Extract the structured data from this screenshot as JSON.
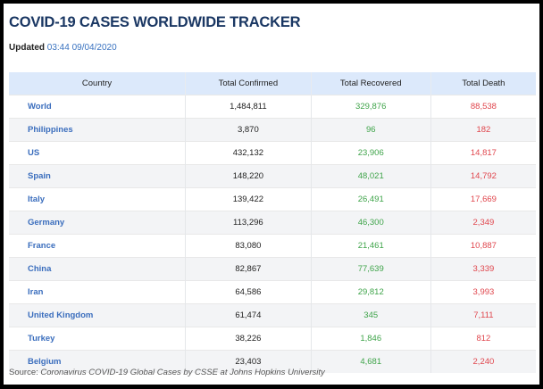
{
  "title": "COVID-19 CASES WORLDWIDE TRACKER",
  "updated": {
    "label": "Updated",
    "timestamp": "03:44 09/04/2020"
  },
  "table": {
    "headers": [
      "Country",
      "Total Confirmed",
      "Total Recovered",
      "Total Death"
    ],
    "rows": [
      {
        "country": "World",
        "confirmed": "1,484,811",
        "recovered": "329,876",
        "death": "88,538"
      },
      {
        "country": "Philippines",
        "confirmed": "3,870",
        "recovered": "96",
        "death": "182"
      },
      {
        "country": "US",
        "confirmed": "432,132",
        "recovered": "23,906",
        "death": "14,817"
      },
      {
        "country": "Spain",
        "confirmed": "148,220",
        "recovered": "48,021",
        "death": "14,792"
      },
      {
        "country": "Italy",
        "confirmed": "139,422",
        "recovered": "26,491",
        "death": "17,669"
      },
      {
        "country": "Germany",
        "confirmed": "113,296",
        "recovered": "46,300",
        "death": "2,349"
      },
      {
        "country": "France",
        "confirmed": "83,080",
        "recovered": "21,461",
        "death": "10,887"
      },
      {
        "country": "China",
        "confirmed": "82,867",
        "recovered": "77,639",
        "death": "3,339"
      },
      {
        "country": "Iran",
        "confirmed": "64,586",
        "recovered": "29,812",
        "death": "3,993"
      },
      {
        "country": "United Kingdom",
        "confirmed": "61,474",
        "recovered": "345",
        "death": "7,111"
      },
      {
        "country": "Turkey",
        "confirmed": "38,226",
        "recovered": "1,846",
        "death": "812"
      },
      {
        "country": "Belgium",
        "confirmed": "23,403",
        "recovered": "4,681",
        "death": "2,240"
      }
    ]
  },
  "source": {
    "label": "Source:",
    "text": "Coronavirus COVID-19 Global Cases by CSSE at Johns Hopkins University"
  },
  "colors": {
    "title": "#1a3763",
    "country_link": "#3a6dbd",
    "recovered": "#3fa44a",
    "death": "#e0464d",
    "header_bg": "#dce9fb"
  }
}
